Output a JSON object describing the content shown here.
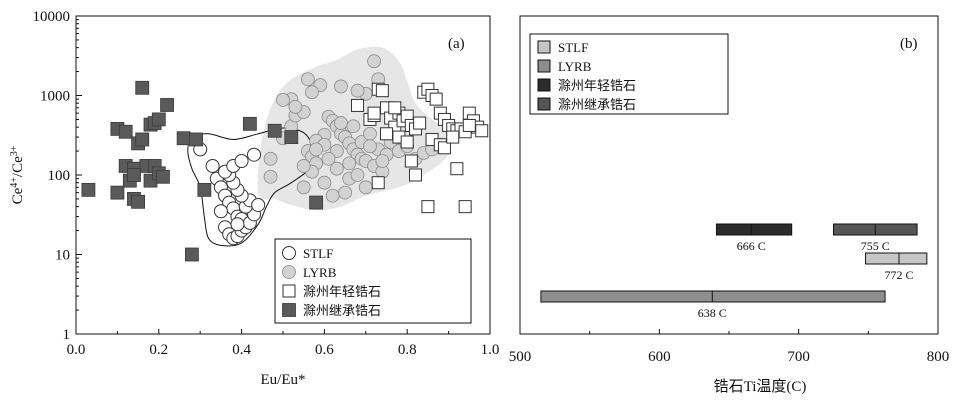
{
  "chart_data": [
    {
      "type": "scatter",
      "panel_label": "(a)",
      "xlabel": "Eu/Eu*",
      "ylabel_html": {
        "base": "Ce",
        "sup1": "4+",
        "mid": "/Ce",
        "sup2": "3+"
      },
      "xlim": [
        0,
        1
      ],
      "ylim": [
        1,
        10000
      ],
      "yscale": "log",
      "xticks": [
        "0.0",
        "0.2",
        "0.4",
        "0.6",
        "0.8",
        "1.0"
      ],
      "xtick_values": [
        0,
        0.2,
        0.4,
        0.6,
        0.8,
        1.0
      ],
      "yticks": [
        "1",
        "10",
        "100",
        "1000",
        "10000"
      ],
      "ytick_values": [
        1,
        10,
        100,
        1000,
        10000
      ],
      "legend_position": "bottom-right",
      "series": [
        {
          "name": "STLF",
          "marker": "open-circle",
          "color": "#333333",
          "points": [
            [
              0.3,
              210
            ],
            [
              0.33,
              130
            ],
            [
              0.34,
              90
            ],
            [
              0.35,
              70
            ],
            [
              0.36,
              55
            ],
            [
              0.37,
              45
            ],
            [
              0.38,
              38
            ],
            [
              0.39,
              30
            ],
            [
              0.4,
              28
            ],
            [
              0.36,
              22
            ],
            [
              0.37,
              18
            ],
            [
              0.38,
              16
            ],
            [
              0.39,
              17
            ],
            [
              0.4,
              20
            ],
            [
              0.41,
              22
            ],
            [
              0.42,
              25
            ],
            [
              0.43,
              32
            ],
            [
              0.41,
              40
            ],
            [
              0.42,
              48
            ],
            [
              0.4,
              55
            ],
            [
              0.39,
              65
            ],
            [
              0.38,
              80
            ],
            [
              0.37,
              100
            ],
            [
              0.36,
              110
            ],
            [
              0.38,
              130
            ],
            [
              0.4,
              150
            ],
            [
              0.43,
              180
            ],
            [
              0.35,
              35
            ],
            [
              0.44,
              42
            ],
            [
              0.39,
              24
            ]
          ]
        },
        {
          "name": "LYRB",
          "marker": "filled-circle",
          "color": "#d2d2d2",
          "points": [
            [
              0.47,
              95
            ],
            [
              0.47,
              160
            ],
            [
              0.5,
              290
            ],
            [
              0.52,
              410
            ],
            [
              0.53,
              560
            ],
            [
              0.55,
              620
            ],
            [
              0.56,
              200
            ],
            [
              0.57,
              170
            ],
            [
              0.58,
              140
            ],
            [
              0.59,
              240
            ],
            [
              0.6,
              320
            ],
            [
              0.61,
              540
            ],
            [
              0.62,
              480
            ],
            [
              0.63,
              410
            ],
            [
              0.64,
              330
            ],
            [
              0.65,
              300
            ],
            [
              0.66,
              250
            ],
            [
              0.67,
              210
            ],
            [
              0.68,
              180
            ],
            [
              0.69,
              160
            ],
            [
              0.7,
              150
            ],
            [
              0.72,
              130
            ],
            [
              0.74,
              110
            ],
            [
              0.55,
              70
            ],
            [
              0.57,
              110
            ],
            [
              0.6,
              80
            ],
            [
              0.62,
              55
            ],
            [
              0.65,
              60
            ],
            [
              0.66,
              90
            ],
            [
              0.68,
              100
            ],
            [
              0.7,
              70
            ],
            [
              0.58,
              270
            ],
            [
              0.6,
              240
            ],
            [
              0.63,
              200
            ],
            [
              0.64,
              450
            ],
            [
              0.67,
              410
            ],
            [
              0.69,
              260
            ],
            [
              0.71,
              330
            ],
            [
              0.73,
              210
            ],
            [
              0.75,
              180
            ],
            [
              0.76,
              260
            ],
            [
              0.78,
              200
            ],
            [
              0.8,
              230
            ],
            [
              0.82,
              160
            ],
            [
              0.84,
              190
            ],
            [
              0.86,
              210
            ],
            [
              0.88,
              240
            ],
            [
              0.56,
              1600
            ],
            [
              0.59,
              1350
            ],
            [
              0.64,
              1300
            ],
            [
              0.7,
              1050
            ],
            [
              0.72,
              2700
            ],
            [
              0.73,
              1600
            ],
            [
              0.52,
              900
            ],
            [
              0.55,
              130
            ],
            [
              0.61,
              160
            ],
            [
              0.63,
              120
            ],
            [
              0.66,
              140
            ],
            [
              0.71,
              230
            ],
            [
              0.74,
              150
            ],
            [
              0.78,
              300
            ],
            [
              0.53,
              720
            ],
            [
              0.5,
              880
            ],
            [
              0.57,
              1100
            ],
            [
              0.58,
              210
            ],
            [
              0.68,
              1150
            ]
          ]
        },
        {
          "name": "滁州年轻锆石",
          "marker": "open-square",
          "color": "#333333",
          "points": [
            [
              0.68,
              750
            ],
            [
              0.71,
              500
            ],
            [
              0.72,
              560
            ],
            [
              0.73,
              1200
            ],
            [
              0.74,
              1150
            ],
            [
              0.75,
              700
            ],
            [
              0.76,
              520
            ],
            [
              0.77,
              400
            ],
            [
              0.78,
              600
            ],
            [
              0.79,
              480
            ],
            [
              0.8,
              550
            ],
            [
              0.81,
              420
            ],
            [
              0.82,
              380
            ],
            [
              0.84,
              1100
            ],
            [
              0.85,
              1200
            ],
            [
              0.86,
              1000
            ],
            [
              0.87,
              900
            ],
            [
              0.88,
              600
            ],
            [
              0.89,
              500
            ],
            [
              0.9,
              420
            ],
            [
              0.91,
              380
            ],
            [
              0.92,
              360
            ],
            [
              0.93,
              380
            ],
            [
              0.94,
              350
            ],
            [
              0.95,
              600
            ],
            [
              0.96,
              480
            ],
            [
              0.97,
              400
            ],
            [
              0.98,
              360
            ],
            [
              0.75,
              330
            ],
            [
              0.78,
              300
            ],
            [
              0.8,
              260
            ],
            [
              0.86,
              280
            ],
            [
              0.88,
              240
            ],
            [
              0.89,
              220
            ],
            [
              0.81,
              150
            ],
            [
              0.82,
              100
            ],
            [
              0.73,
              80
            ],
            [
              0.85,
              40
            ],
            [
              0.94,
              40
            ],
            [
              0.92,
              120
            ],
            [
              0.72,
              600
            ],
            [
              0.77,
              700
            ],
            [
              0.83,
              450
            ],
            [
              0.91,
              300
            ],
            [
              0.95,
              420
            ]
          ]
        },
        {
          "name": "滁州继承锆石",
          "marker": "filled-square",
          "color": "#5a5a5a",
          "points": [
            [
              0.03,
              65
            ],
            [
              0.1,
              60
            ],
            [
              0.1,
              380
            ],
            [
              0.12,
              350
            ],
            [
              0.12,
              130
            ],
            [
              0.13,
              85
            ],
            [
              0.14,
              120
            ],
            [
              0.14,
              50
            ],
            [
              0.15,
              250
            ],
            [
              0.15,
              46
            ],
            [
              0.16,
              280
            ],
            [
              0.16,
              1250
            ],
            [
              0.17,
              130
            ],
            [
              0.18,
              430
            ],
            [
              0.18,
              85
            ],
            [
              0.19,
              130
            ],
            [
              0.19,
              450
            ],
            [
              0.2,
              105
            ],
            [
              0.2,
              500
            ],
            [
              0.22,
              760
            ],
            [
              0.26,
              290
            ],
            [
              0.28,
              10
            ],
            [
              0.29,
              280
            ],
            [
              0.31,
              65
            ],
            [
              0.42,
              440
            ],
            [
              0.48,
              360
            ],
            [
              0.52,
              300
            ],
            [
              0.58,
              45
            ],
            [
              0.14,
              100
            ],
            [
              0.21,
              95
            ]
          ]
        }
      ],
      "shaded_fields": [
        {
          "name": "LYRB field",
          "fill": "#e6e6e6",
          "outline": false,
          "points": [
            [
              0.44,
              60
            ],
            [
              0.45,
              300
            ],
            [
              0.48,
              900
            ],
            [
              0.52,
              1600
            ],
            [
              0.58,
              2300
            ],
            [
              0.63,
              2800
            ],
            [
              0.68,
              3800
            ],
            [
              0.74,
              4000
            ],
            [
              0.78,
              2700
            ],
            [
              0.8,
              1500
            ],
            [
              0.82,
              800
            ],
            [
              0.86,
              500
            ],
            [
              0.9,
              350
            ],
            [
              0.9,
              180
            ],
            [
              0.84,
              100
            ],
            [
              0.78,
              70
            ],
            [
              0.7,
              55
            ],
            [
              0.64,
              40
            ],
            [
              0.58,
              36
            ],
            [
              0.52,
              42
            ],
            [
              0.48,
              50
            ]
          ]
        },
        {
          "name": "STLF field",
          "fill": "none",
          "outline": true,
          "points": [
            [
              0.28,
              300
            ],
            [
              0.32,
              330
            ],
            [
              0.38,
              280
            ],
            [
              0.44,
              330
            ],
            [
              0.5,
              390
            ],
            [
              0.55,
              340
            ],
            [
              0.57,
              230
            ],
            [
              0.57,
              130
            ],
            [
              0.52,
              80
            ],
            [
              0.48,
              60
            ],
            [
              0.46,
              40
            ],
            [
              0.44,
              24
            ],
            [
              0.4,
              14
            ],
            [
              0.35,
              13
            ],
            [
              0.32,
              16
            ],
            [
              0.31,
              30
            ],
            [
              0.3,
              70
            ],
            [
              0.28,
              120
            ],
            [
              0.27,
              200
            ]
          ]
        }
      ]
    },
    {
      "type": "range-bar",
      "panel_label": "(b)",
      "xlabel": "锆石Ti温度(C)",
      "xlim": [
        500,
        800
      ],
      "xticks": [
        "500",
        "600",
        "700",
        "800"
      ],
      "xtick_values": [
        500,
        600,
        700,
        800
      ],
      "legend_position": "top-left",
      "series": [
        {
          "name": "STLF",
          "color": "#c6c6c6",
          "min": 748,
          "max": 792,
          "mean": 772,
          "label": "772 C",
          "row": 0
        },
        {
          "name": "LYRB",
          "color": "#8e8e8e",
          "min": 515,
          "max": 762,
          "mean": 638,
          "label": "638 C",
          "row": -1
        },
        {
          "name": "滁州年轻锆石",
          "color": "#2b2b2b",
          "min": 641,
          "max": 695,
          "mean": 666,
          "label": "666 C",
          "row": 1
        },
        {
          "name": "滁州继承锆石",
          "color": "#555555",
          "min": 725,
          "max": 785,
          "mean": 755,
          "label": "755 C",
          "row": 1
        }
      ]
    }
  ]
}
